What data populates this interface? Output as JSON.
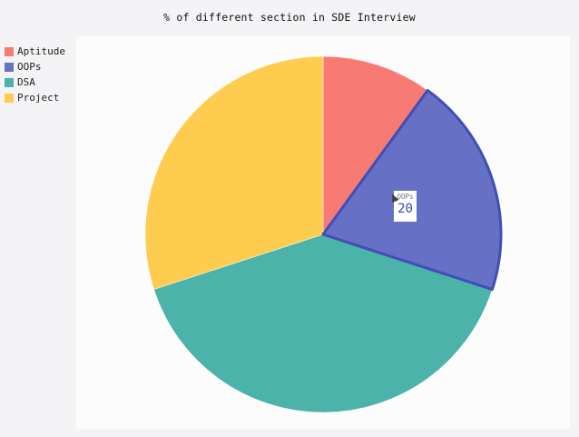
{
  "chart_data": {
    "type": "pie",
    "title": "% of different section in SDE Interview",
    "categories": [
      "Aptitude",
      "OOPs",
      "DSA",
      "Project"
    ],
    "values": [
      10,
      20,
      40,
      30
    ],
    "colors": [
      "#f77b72",
      "#6670c4",
      "#4bb3aa",
      "#fecd4f"
    ],
    "highlight_color": "#3f4fb8",
    "legend_position": "top-left"
  },
  "tooltip": {
    "label": "OOPs",
    "value": "20"
  }
}
